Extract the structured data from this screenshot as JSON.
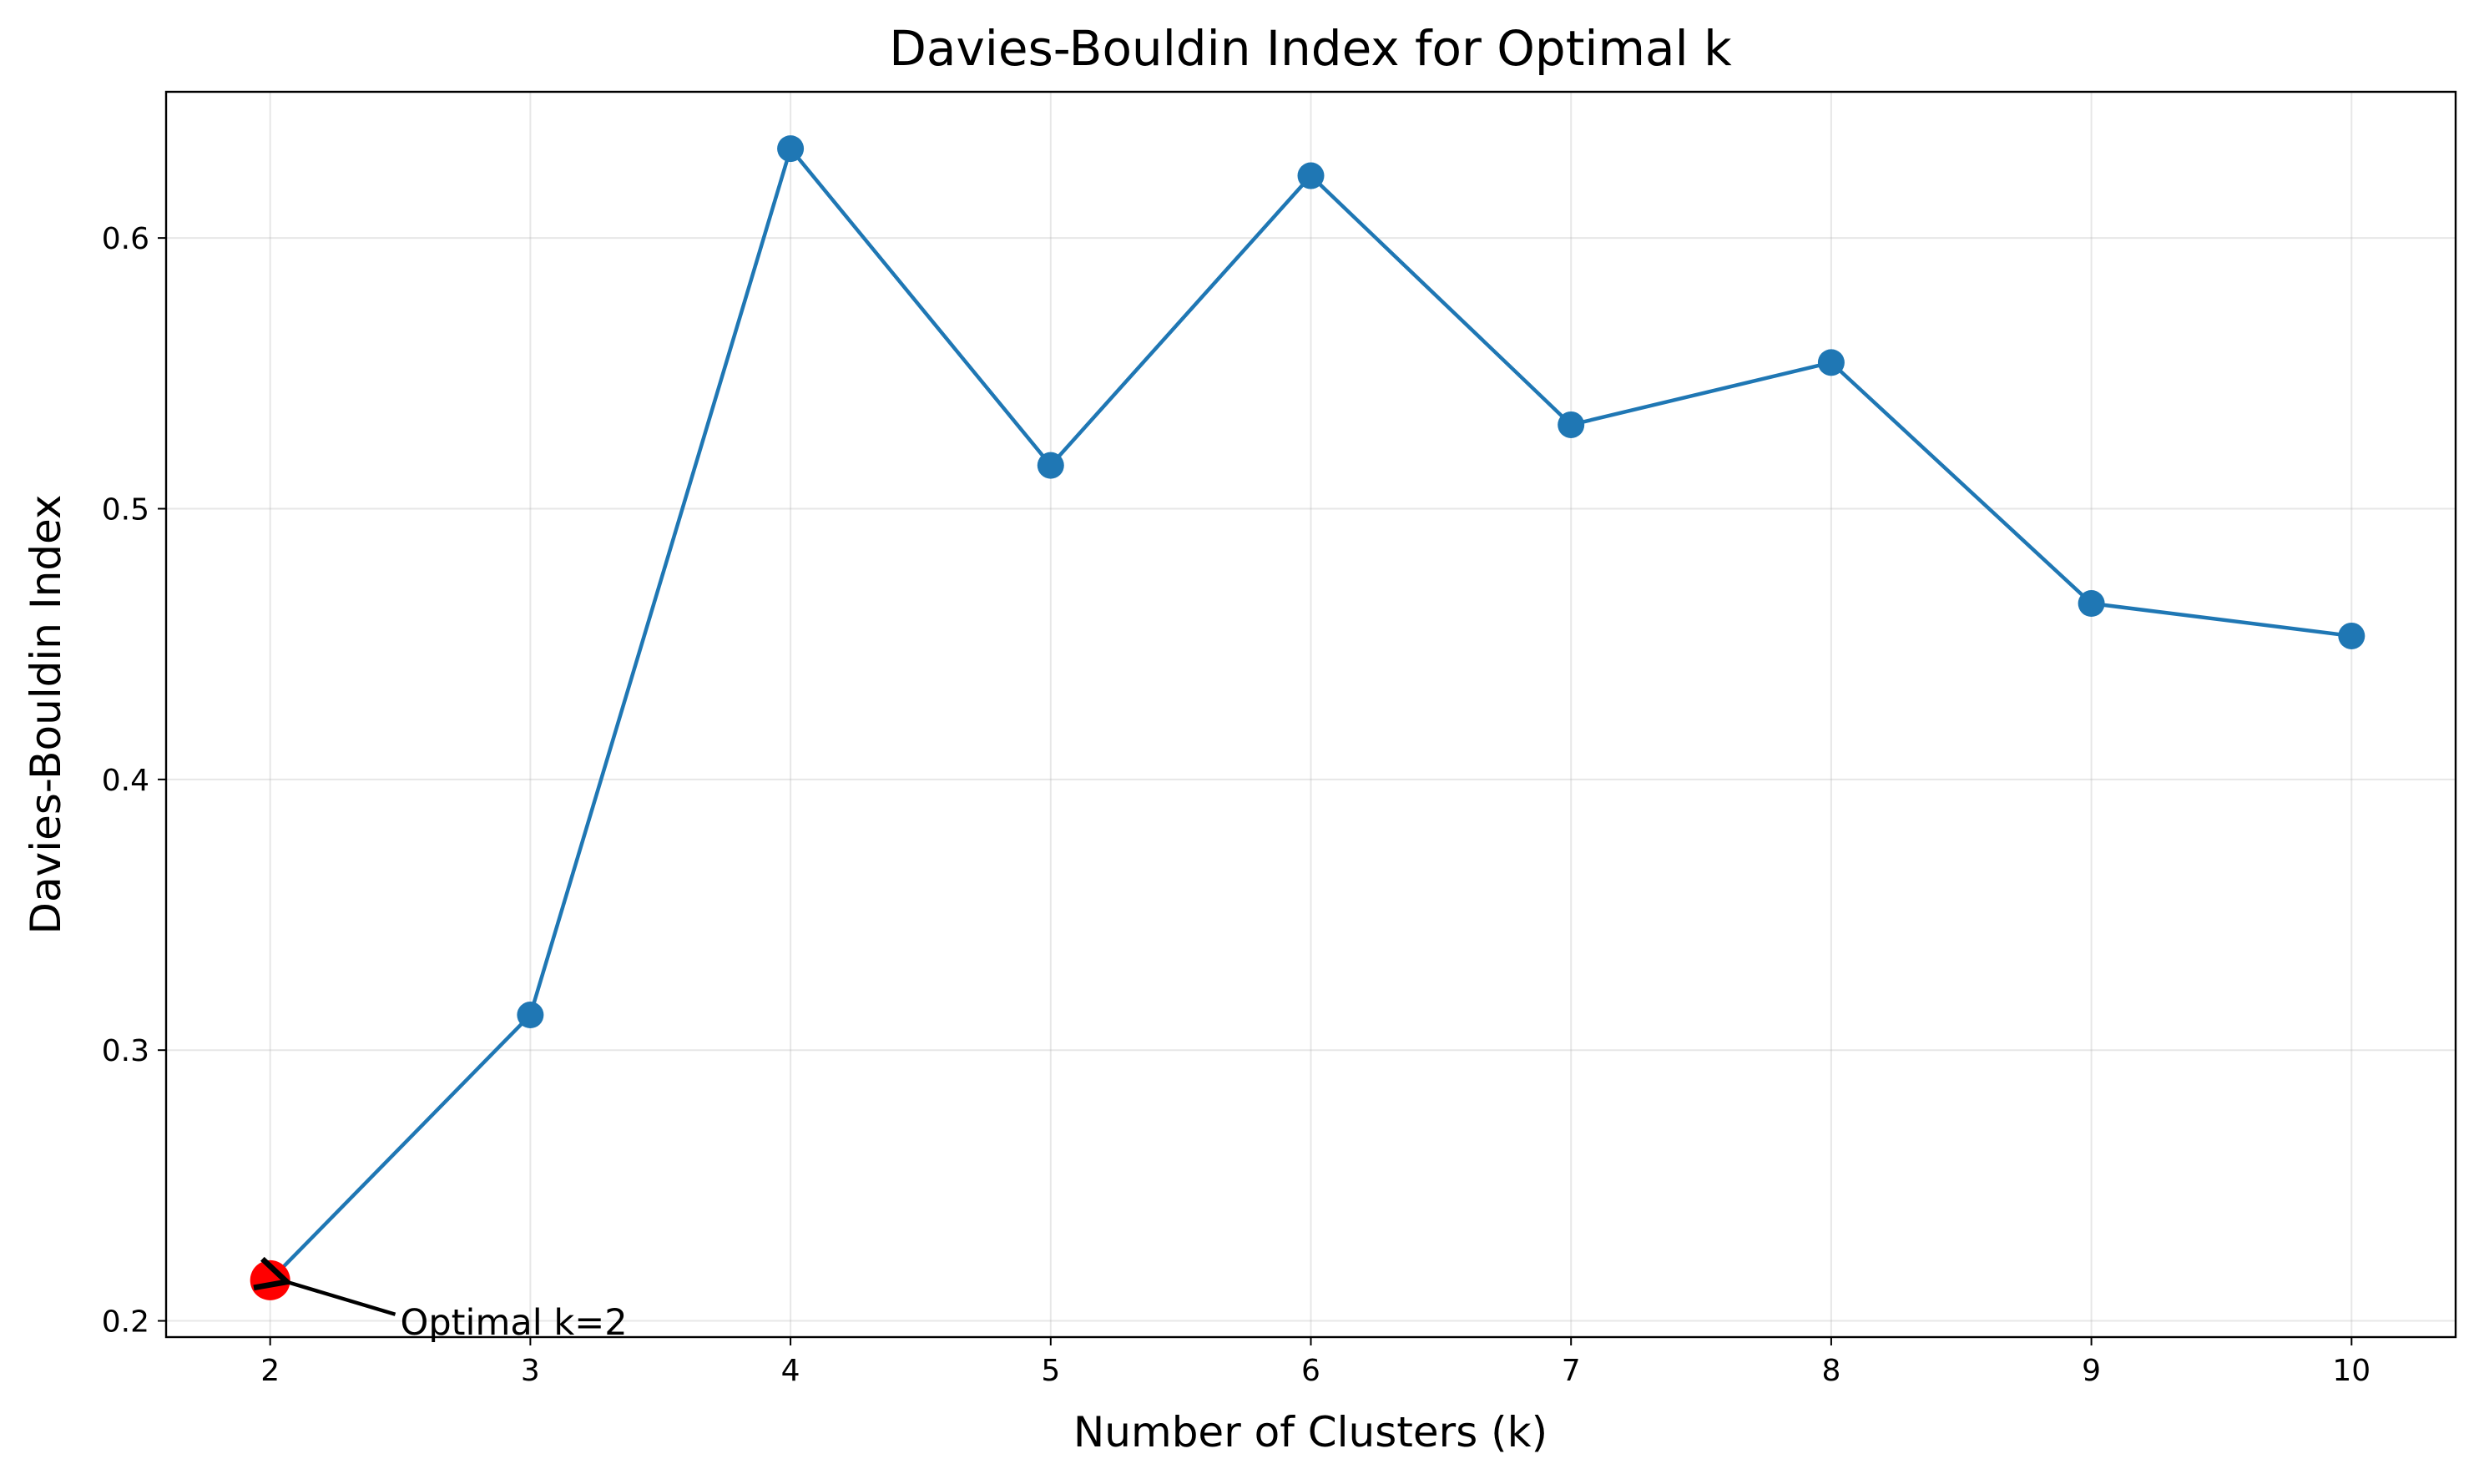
{
  "chart_data": {
    "type": "line",
    "title": "Davies-Bouldin Index for Optimal k",
    "xlabel": "Number of Clusters (k)",
    "ylabel": "Davies-Bouldin Index",
    "x": [
      2,
      3,
      4,
      5,
      6,
      7,
      8,
      9,
      10
    ],
    "series": [
      {
        "values": [
          0.215,
          0.313,
          0.633,
          0.516,
          0.623,
          0.531,
          0.554,
          0.465,
          0.453
        ],
        "color": "#1f77b4"
      }
    ],
    "xlim": [
      1.6,
      10.4
    ],
    "ylim": [
      0.194,
      0.654
    ],
    "x_ticks": [
      2,
      3,
      4,
      5,
      6,
      7,
      8,
      9,
      10
    ],
    "y_ticks": [
      0.2,
      0.3,
      0.4,
      0.5,
      0.6
    ],
    "x_tick_labels": [
      "2",
      "3",
      "4",
      "5",
      "6",
      "7",
      "8",
      "9",
      "10"
    ],
    "y_tick_labels": [
      "0.2",
      "0.3",
      "0.4",
      "0.5",
      "0.6"
    ],
    "grid": true,
    "highlight": {
      "x": 2,
      "y": 0.215,
      "color": "#ff0000",
      "label": "Optimal k=2",
      "label_x": 2.5,
      "label_y": 0.195
    }
  }
}
